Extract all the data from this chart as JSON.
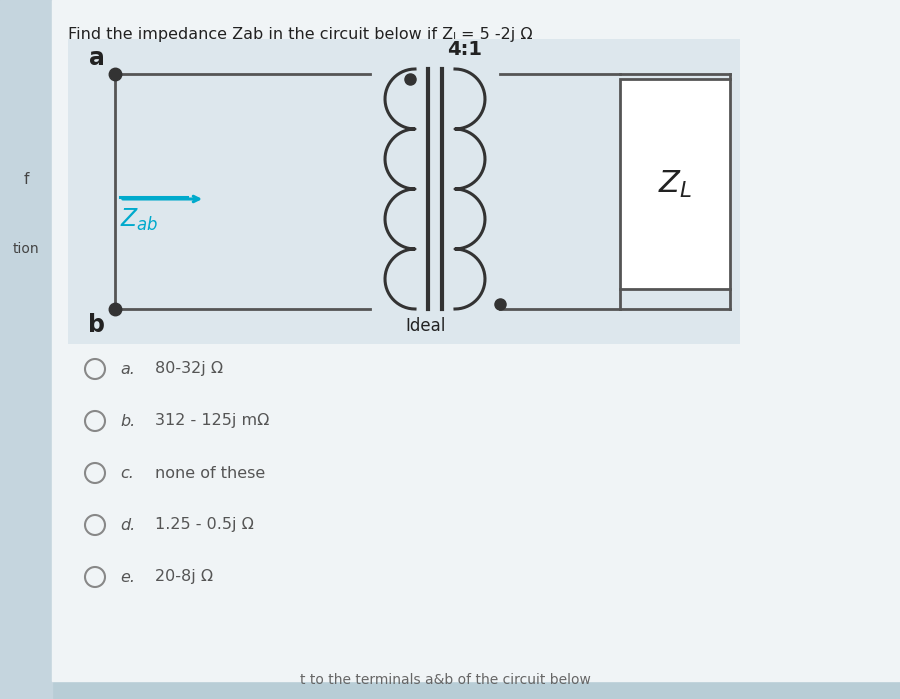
{
  "title": "Find the impedance Zab in the circuit below if Zₗ = 5 -2j Ω",
  "bg_outer": "#b8cdd6",
  "bg_left_strip": "#c5d5de",
  "bg_main": "#f0f4f6",
  "bg_circuit": "#edf2f5",
  "options": [
    {
      "label": "a.",
      "text": "80-32j Ω"
    },
    {
      "label": "b.",
      "text": "312 - 125j mΩ"
    },
    {
      "label": "c.",
      "text": "none of these"
    },
    {
      "label": "d.",
      "text": "1.25 - 0.5j Ω"
    },
    {
      "label": "e.",
      "text": "20-8j Ω"
    }
  ],
  "transformer_ratio": "4:1",
  "ideal_label": "Ideal",
  "zl_label": "Z_L",
  "terminal_a": "a",
  "terminal_b": "b",
  "zab_color": "#00aacc",
  "wire_color": "#555555",
  "dot_color": "#333333",
  "footer_text": "t to the terminals a&b of the circuit below"
}
